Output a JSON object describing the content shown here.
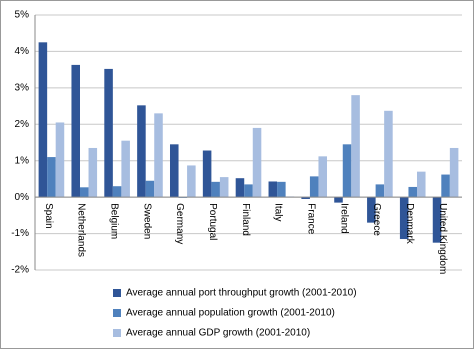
{
  "chart_data": {
    "type": "bar",
    "categories": [
      "Spain",
      "Netherlands",
      "Belgium",
      "Sweden",
      "Germany",
      "Portugal",
      "Finland",
      "Italy",
      "France",
      "Ireland",
      "Greece",
      "Denmark",
      "United Kingdom"
    ],
    "series": [
      {
        "name": "Average annual port throughput growth (2001-2010)",
        "color": "#2f5597",
        "values": [
          4.25,
          3.63,
          3.52,
          2.52,
          1.45,
          1.28,
          0.52,
          0.43,
          -0.05,
          -0.15,
          -0.7,
          -1.15,
          -1.25
        ]
      },
      {
        "name": "Average annual population growth (2001-2010)",
        "color": "#4f81bd",
        "values": [
          1.1,
          0.27,
          0.3,
          0.45,
          -0.02,
          0.42,
          0.35,
          0.42,
          0.57,
          1.45,
          0.35,
          0.28,
          0.62
        ]
      },
      {
        "name": "Average annual GDP growth (2001-2010)",
        "color": "#a7bde0",
        "values": [
          2.05,
          1.35,
          1.55,
          2.3,
          0.87,
          0.55,
          1.9,
          0.02,
          1.12,
          2.8,
          2.37,
          0.7,
          1.35
        ]
      }
    ],
    "ylim": [
      -2,
      5
    ],
    "yticks": [
      {
        "value": -2,
        "label": "-2%"
      },
      {
        "value": -1,
        "label": "-1%"
      },
      {
        "value": 0,
        "label": "0%"
      },
      {
        "value": 1,
        "label": "1%"
      },
      {
        "value": 2,
        "label": "2%"
      },
      {
        "value": 3,
        "label": "3%"
      },
      {
        "value": 4,
        "label": "4%"
      },
      {
        "value": 5,
        "label": "5%"
      }
    ],
    "grid": true
  }
}
